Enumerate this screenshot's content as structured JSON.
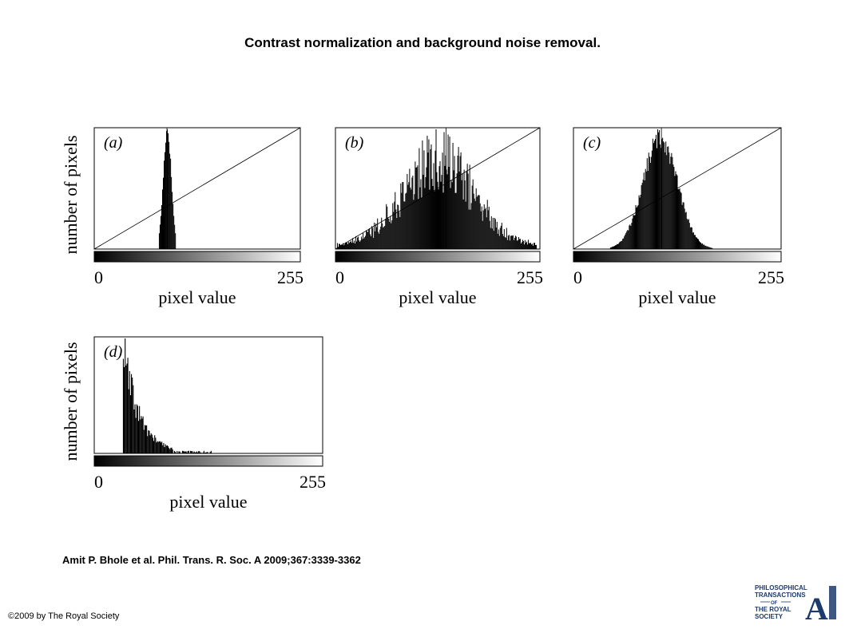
{
  "header": {
    "title": "Contrast normalization and background noise removal."
  },
  "footer": {
    "citation": "Amit P. Bhole et al. Phil. Trans. R. Soc. A 2009;367:3339-3362",
    "copyright": "©2009 by The Royal Society"
  },
  "logo": {
    "line1": "PHILOSOPHICAL",
    "line2": "TRANSACTIONS",
    "line3": "OF",
    "line4": "THE ROYAL",
    "line5": "SOCIETY",
    "letter": "A",
    "icon": "royal-society-logo",
    "color": "#1c3a6b"
  },
  "chart_data": [
    {
      "type": "histogram",
      "panel_label": "(a)",
      "xlabel": "pixel value",
      "ylabel": "number of pixels",
      "xlim": [
        0,
        255
      ],
      "xticks": [
        "0",
        "255"
      ],
      "diagonal": true,
      "marker_line": 90,
      "distribution": "peak",
      "peak_value": 90,
      "spread": 5,
      "x_range": [
        80,
        100
      ]
    },
    {
      "type": "histogram",
      "panel_label": "(b)",
      "xlabel": "pixel value",
      "ylabel": "",
      "xlim": [
        0,
        255
      ],
      "xticks": [
        "0",
        "255"
      ],
      "diagonal": true,
      "marker_line": 138,
      "distribution": "wide-bell",
      "peak_value": 128,
      "spread": 45,
      "x_range": [
        2,
        250
      ]
    },
    {
      "type": "histogram",
      "panel_label": "(c)",
      "xlabel": "pixel value",
      "ylabel": "",
      "xlim": [
        0,
        255
      ],
      "xticks": [
        "0",
        "255"
      ],
      "diagonal": true,
      "marker_line": 108,
      "distribution": "bell",
      "peak_value": 106,
      "spread": 21,
      "x_range": [
        45,
        170
      ]
    },
    {
      "type": "histogram",
      "panel_label": "(d)",
      "xlabel": "pixel value",
      "ylabel": "number of pixels",
      "xlim": [
        0,
        255
      ],
      "xticks": [
        "0",
        "255"
      ],
      "diagonal": false,
      "marker_line": null,
      "distribution": "decay",
      "peak_value": 32,
      "spread": 18,
      "x_range": [
        32,
        130
      ]
    }
  ]
}
